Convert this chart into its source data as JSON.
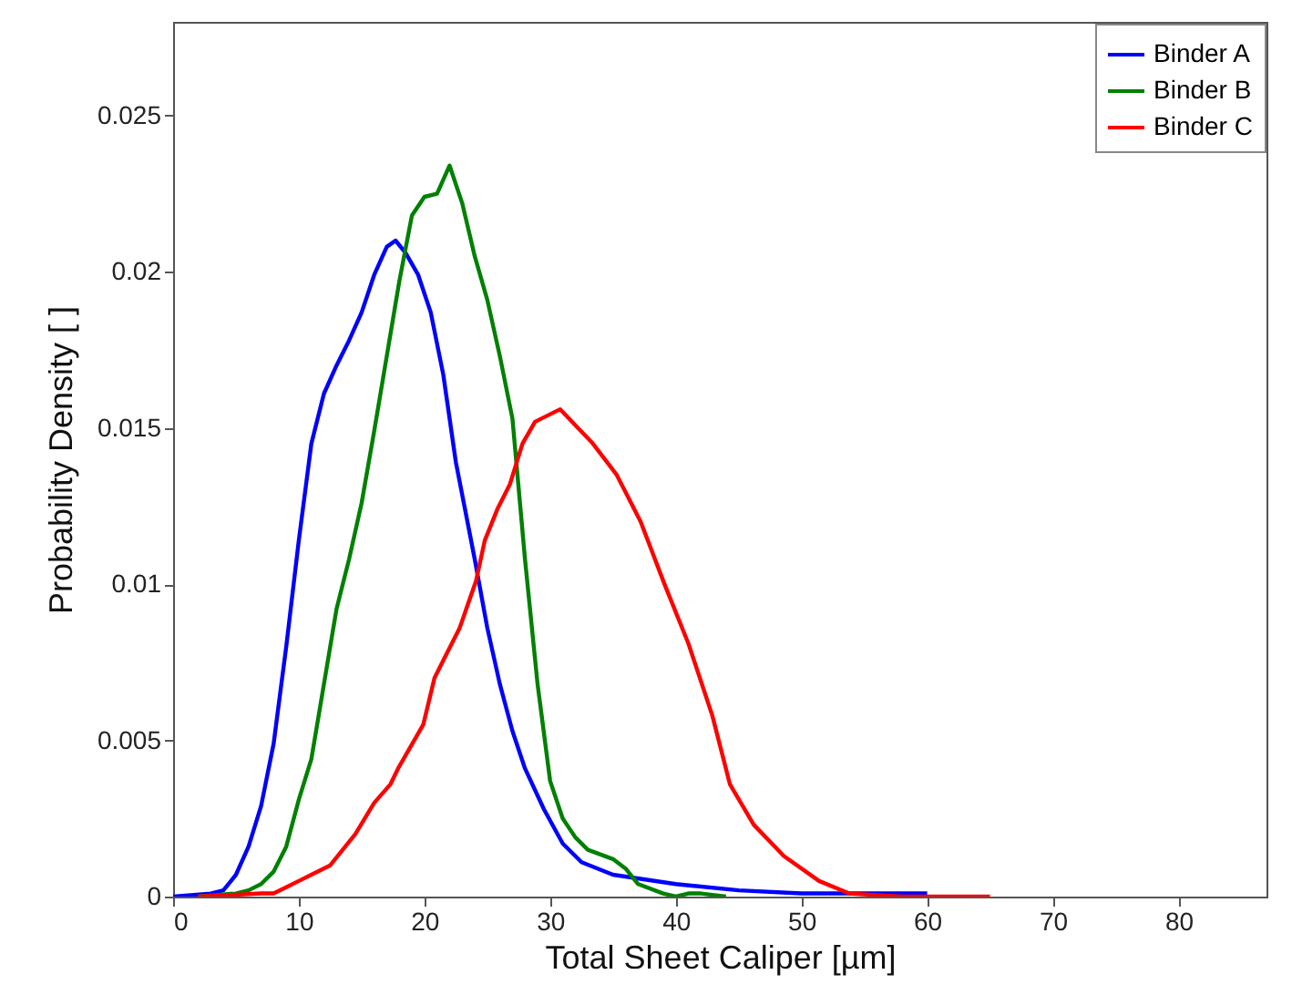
{
  "chart_data": {
    "type": "line",
    "xlabel": "Total Sheet Caliper [µm]",
    "ylabel": "Probability Density [ ]",
    "xlim": [
      0,
      87
    ],
    "ylim": [
      0,
      0.028
    ],
    "xticks": [
      0,
      10,
      20,
      30,
      40,
      50,
      60,
      70,
      80
    ],
    "yticks": [
      0,
      0.005,
      0.01,
      0.015,
      0.02,
      0.025
    ],
    "grid": false,
    "legend": "top right",
    "line_style": "solid",
    "marker": "none",
    "series": [
      {
        "name": "Binder A",
        "color": "#0000ff",
        "x": [
          0,
          3,
          4,
          5,
          6,
          7,
          8,
          9,
          10,
          11,
          12,
          13,
          14,
          15,
          16,
          17,
          17.7,
          18.5,
          19.5,
          20.5,
          21.5,
          22.5,
          24,
          25,
          26,
          27,
          28,
          29.5,
          31,
          32.5,
          35,
          40,
          45,
          50,
          55,
          60
        ],
        "values": [
          0,
          0.0001,
          0.0002,
          0.0007,
          0.0016,
          0.0029,
          0.0049,
          0.008,
          0.0114,
          0.0145,
          0.0161,
          0.017,
          0.0178,
          0.0187,
          0.0199,
          0.0208,
          0.021,
          0.0206,
          0.0199,
          0.0187,
          0.0167,
          0.0139,
          0.0108,
          0.0086,
          0.0068,
          0.0053,
          0.0041,
          0.0028,
          0.0017,
          0.0011,
          0.0007,
          0.0004,
          0.0002,
          0.0001,
          0.0001,
          0.0001
        ]
      },
      {
        "name": "Binder B",
        "color": "#008000",
        "x": [
          2,
          5,
          6,
          7,
          8,
          9,
          10,
          11,
          12,
          13,
          14,
          15,
          16,
          17,
          18,
          19,
          20,
          21,
          22,
          23,
          24,
          25,
          26,
          27,
          28,
          29,
          30,
          31,
          32,
          33,
          35,
          36,
          37,
          39,
          40,
          41,
          42,
          44
        ],
        "values": [
          0,
          0.0001,
          0.0002,
          0.0004,
          0.0008,
          0.0016,
          0.0031,
          0.0044,
          0.0068,
          0.0092,
          0.0108,
          0.0126,
          0.0149,
          0.0173,
          0.0197,
          0.0218,
          0.0224,
          0.0225,
          0.0234,
          0.0222,
          0.0205,
          0.0191,
          0.0173,
          0.0153,
          0.0108,
          0.0068,
          0.0037,
          0.0025,
          0.0019,
          0.0015,
          0.0012,
          0.0009,
          0.0004,
          0.0001,
          0,
          0.0001,
          0.0001,
          0
        ]
      },
      {
        "name": "Binder C",
        "color": "#ff0000",
        "x": [
          2,
          7,
          8,
          9,
          10,
          11,
          12.5,
          14.5,
          16,
          17.3,
          17.9,
          19.9,
          20.8,
          21.8,
          22.8,
          24.1,
          24.8,
          25.8,
          26.8,
          27.8,
          28.8,
          30.8,
          33.4,
          35.3,
          37.2,
          39.1,
          41,
          42.9,
          44.3,
          46.2,
          48.6,
          51.4,
          53.8,
          58,
          65
        ],
        "values": [
          0,
          0.0001,
          0.0001,
          0.0003,
          0.0005,
          0.0007,
          0.001,
          0.002,
          0.003,
          0.0036,
          0.0041,
          0.0055,
          0.007,
          0.0078,
          0.0086,
          0.0101,
          0.0114,
          0.0124,
          0.0132,
          0.0145,
          0.0152,
          0.0156,
          0.0145,
          0.0135,
          0.012,
          0.01,
          0.0081,
          0.0058,
          0.0036,
          0.0023,
          0.0013,
          0.0005,
          0.0001,
          0,
          0
        ]
      }
    ]
  }
}
